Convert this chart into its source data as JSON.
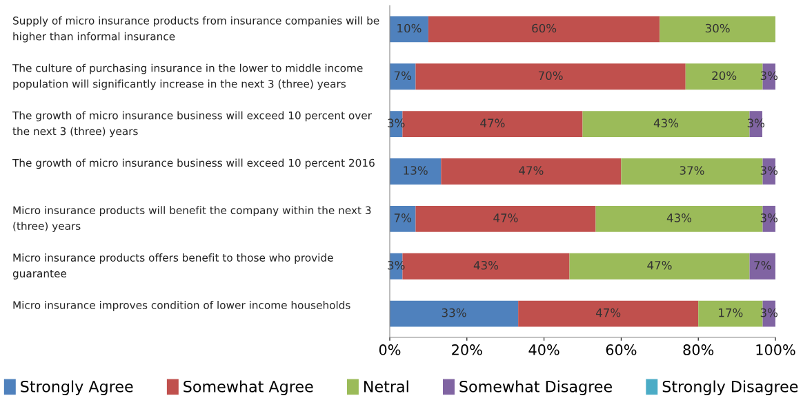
{
  "chart_data": {
    "type": "bar",
    "orientation": "horizontal",
    "stacked": true,
    "categories": [
      "Supply of micro insurance products from insurance companies will be higher than informal insurance",
      "The culture of purchasing insurance in the lower to middle income population will significantly increase in the next 3 (three) years",
      "The growth of micro insurance business will exceed 10 percent over the next 3 (three) years",
      "The growth of micro insurance business will exceed 10 percent 2016",
      "Micro insurance products will benefit the company within the next 3 (three) years",
      "Micro insurance products offers benefit to those who provide guarantee",
      "Micro insurance improves condition of lower income households"
    ],
    "series": [
      {
        "name": "Strongly Agree",
        "color": "#4f81bd",
        "values": [
          10,
          6.7,
          3.3,
          13.3,
          6.7,
          3.3,
          33.3
        ],
        "value_labels": [
          "10%",
          "7%",
          "3%",
          "13%",
          "7%",
          "3%",
          "33%"
        ]
      },
      {
        "name": "Somewhat Agree",
        "color": "#c0504d",
        "values": [
          60,
          70,
          46.7,
          46.7,
          46.7,
          43.3,
          46.7
        ],
        "value_labels": [
          "60%",
          "70%",
          "47%",
          "47%",
          "47%",
          "43%",
          "47%"
        ]
      },
      {
        "name": "Netral",
        "color": "#9bbb59",
        "values": [
          30,
          20,
          43.3,
          36.7,
          43.3,
          46.7,
          16.7
        ],
        "value_labels": [
          "30%",
          "20%",
          "43%",
          "37%",
          "43%",
          "47%",
          "17%"
        ]
      },
      {
        "name": "Somewhat Disagree",
        "color": "#8064a2",
        "values": [
          0,
          3.3,
          3.3,
          3.3,
          3.3,
          6.7,
          3.3
        ],
        "value_labels": [
          null,
          "3%",
          "3%",
          "3%",
          "3%",
          "7%",
          "3%"
        ]
      },
      {
        "name": "Strongly Disagree",
        "color": "#4bacc6",
        "values": [
          0,
          0,
          0,
          0,
          0,
          0,
          0
        ],
        "value_labels": [
          null,
          null,
          null,
          null,
          null,
          null,
          null
        ]
      }
    ],
    "xlim": [
      0,
      100
    ],
    "xticks": [
      {
        "value": 0,
        "label": "0%"
      },
      {
        "value": 20,
        "label": "20%"
      },
      {
        "value": 40,
        "label": "40%"
      },
      {
        "value": 60,
        "label": "60%"
      },
      {
        "value": 80,
        "label": "80%"
      },
      {
        "value": 100,
        "label": "100%"
      }
    ],
    "grid": false,
    "legend": "bottom"
  }
}
